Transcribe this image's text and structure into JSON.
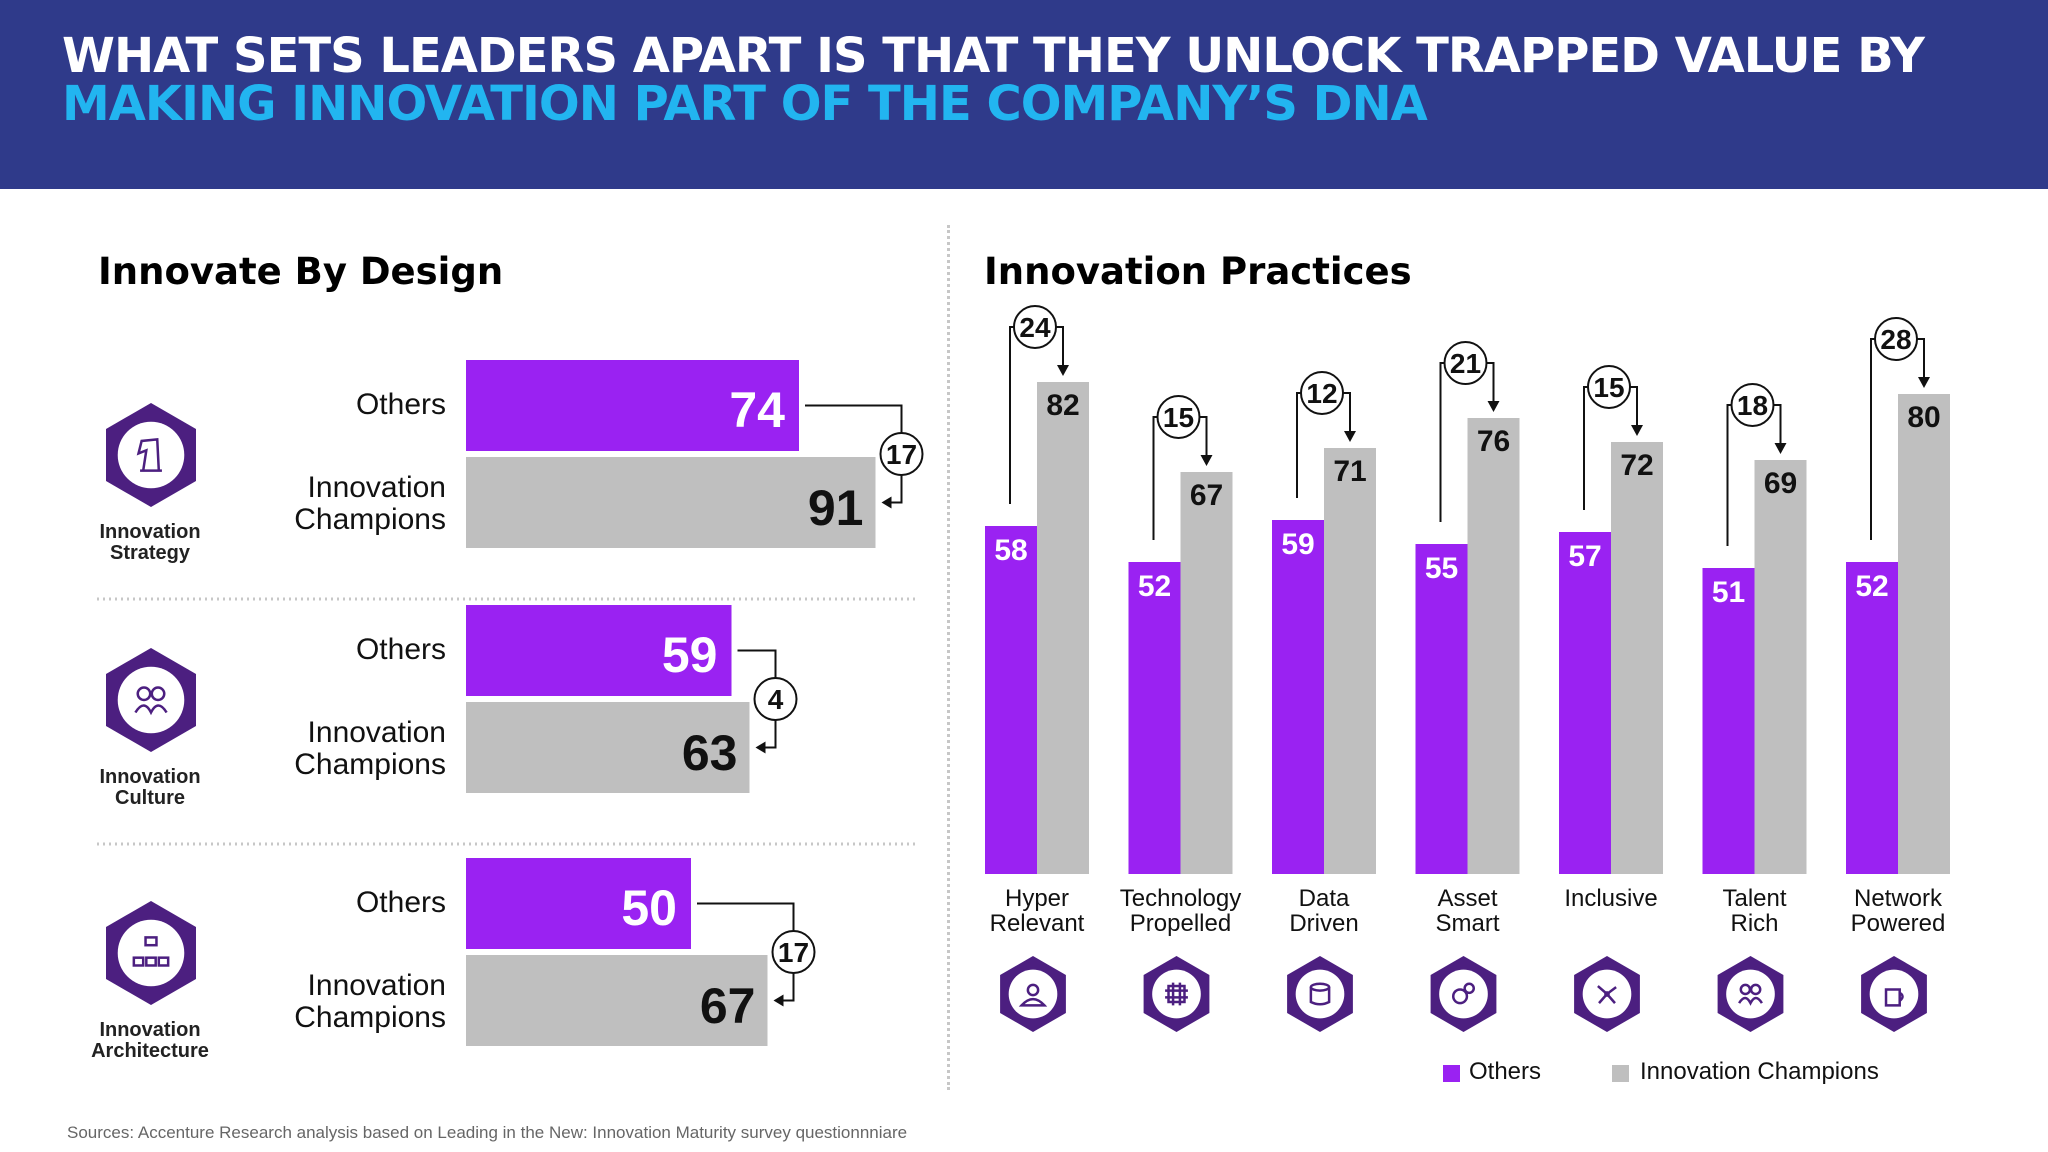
{
  "header": {
    "line1": "WHAT SETS LEADERS APART IS THAT THEY UNLOCK TRAPPED VALUE BY",
    "line2": "MAKING INNOVATION PART OF THE COMPANY’S DNA"
  },
  "colors": {
    "header_bg": "#2f3a8a",
    "accent_cyan": "#22b5f0",
    "others": "#9a22f2",
    "champions": "#bfbfbf",
    "icon_hex": "#4c1f80"
  },
  "left": {
    "title": "Innovate By Design"
  },
  "right": {
    "title": "Innovation Practices"
  },
  "source": "Sources: Accenture Research analysis based on Leading in the New: Innovation Maturity survey questionnniare",
  "chart_data": [
    {
      "type": "bar",
      "orientation": "horizontal",
      "title": "Innovate By Design",
      "groups": [
        {
          "label": "Innovation Strategy",
          "icon": "chess-knight-icon",
          "others_label": "Others",
          "champions_label": "Innovation Champions",
          "others": 74,
          "champions": 91,
          "gap": 17
        },
        {
          "label": "Innovation Culture",
          "icon": "people-gear-icon",
          "others_label": "Others",
          "champions_label": "Innovation Champions",
          "others": 59,
          "champions": 63,
          "gap": 4
        },
        {
          "label": "Innovation Architecture",
          "icon": "org-chart-icon",
          "others_label": "Others",
          "champions_label": "Innovation Champions",
          "others": 50,
          "champions": 67,
          "gap": 17
        }
      ]
    },
    {
      "type": "bar",
      "title": "Innovation Practices",
      "categories": [
        {
          "line1": "Hyper",
          "line2": "Relevant",
          "icon": "person-bust-icon"
        },
        {
          "line1": "Technology",
          "line2": "Propelled",
          "icon": "chip-icon"
        },
        {
          "line1": "Data",
          "line2": "Driven",
          "icon": "database-gear-icon"
        },
        {
          "line1": "Asset",
          "line2": "Smart",
          "icon": "gears-icon"
        },
        {
          "line1": "Inclusive",
          "line2": "",
          "icon": "network-nodes-icon"
        },
        {
          "line1": "Talent",
          "line2": "Rich",
          "icon": "people-group-icon"
        },
        {
          "line1": "Network",
          "line2": "Powered",
          "icon": "mug-tools-icon"
        }
      ],
      "series": [
        {
          "name": "Others",
          "values": [
            58,
            52,
            59,
            55,
            57,
            51,
            52
          ]
        },
        {
          "name": "Innovation Champions",
          "values": [
            82,
            67,
            71,
            76,
            72,
            69,
            80
          ]
        }
      ],
      "gaps": [
        24,
        15,
        12,
        21,
        15,
        18,
        28
      ],
      "ylim": [
        0,
        100
      ],
      "grid": false,
      "legend": {
        "position": "bottom",
        "entries": [
          "Others",
          "Innovation Champions"
        ]
      }
    }
  ]
}
